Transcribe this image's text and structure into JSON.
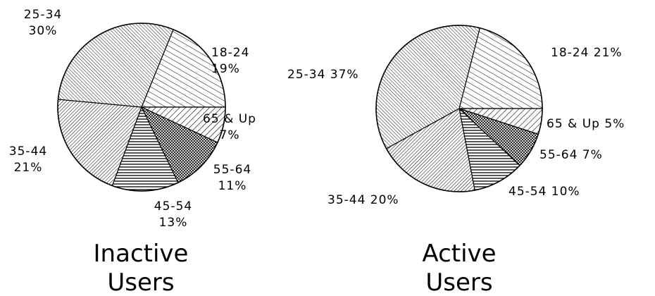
{
  "chart_data": [
    {
      "type": "pie",
      "title": "Inactive Users",
      "title_lines": [
        "Inactive",
        "Users"
      ],
      "slices": [
        {
          "category": "18-24",
          "value": 19,
          "label_lines": [
            "18-24",
            "19%"
          ],
          "pattern": "diag-right-wide"
        },
        {
          "category": "65 & Up",
          "value": 7,
          "label_lines": [
            "65 & Up",
            "7%"
          ],
          "pattern": "diag-left-wide"
        },
        {
          "category": "55-64",
          "value": 11,
          "label_lines": [
            "55-64",
            "11%"
          ],
          "pattern": "crosshatch"
        },
        {
          "category": "45-54",
          "value": 13,
          "label_lines": [
            "45-54",
            "13%"
          ],
          "pattern": "horizontal"
        },
        {
          "category": "35-44",
          "value": 21,
          "label_lines": [
            "35-44",
            "21%"
          ],
          "pattern": "diag-left-dense"
        },
        {
          "category": "25-34",
          "value": 30,
          "label_lines": [
            "25-34",
            "30%"
          ],
          "pattern": "diag-right-dense"
        }
      ]
    },
    {
      "type": "pie",
      "title": "Active Users",
      "title_lines": [
        "Active",
        "Users"
      ],
      "slices": [
        {
          "category": "18-24",
          "value": 21,
          "label_lines": [
            "18-24 21%"
          ],
          "pattern": "diag-right-wide"
        },
        {
          "category": "65 & Up",
          "value": 5,
          "label_lines": [
            "65 & Up 5%"
          ],
          "pattern": "diag-left-wide"
        },
        {
          "category": "55-64",
          "value": 7,
          "label_lines": [
            "55-64 7%"
          ],
          "pattern": "crosshatch"
        },
        {
          "category": "45-54",
          "value": 10,
          "label_lines": [
            "45-54 10%"
          ],
          "pattern": "horizontal"
        },
        {
          "category": "35-44",
          "value": 20,
          "label_lines": [
            "35-44 20%"
          ],
          "pattern": "diag-left-dense"
        },
        {
          "category": "25-34",
          "value": 37,
          "label_lines": [
            "25-34 37%"
          ],
          "pattern": "diag-right-dense"
        }
      ]
    }
  ]
}
